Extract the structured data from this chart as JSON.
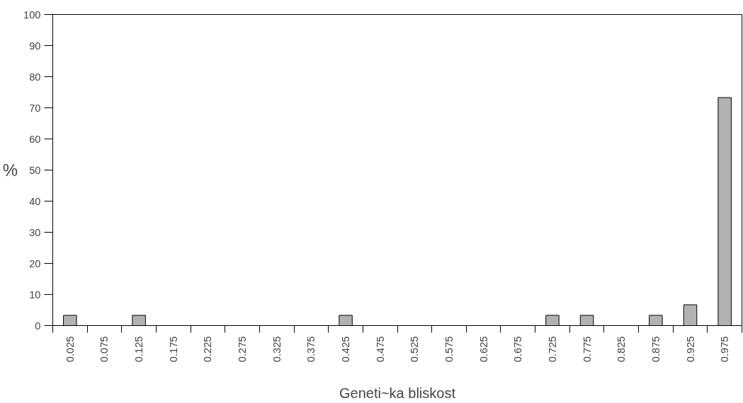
{
  "chart_data": {
    "type": "bar",
    "xlabel": "Geneti~ka bliskost",
    "ylabel": "%",
    "categories": [
      "0.025",
      "0.075",
      "0.125",
      "0.175",
      "0.225",
      "0.275",
      "0.325",
      "0.375",
      "0.425",
      "0.475",
      "0.525",
      "0.575",
      "0.625",
      "0.675",
      "0.725",
      "0.775",
      "0.825",
      "0.875",
      "0.925",
      "0.975"
    ],
    "values": [
      3.3,
      0,
      3.3,
      0,
      0,
      0,
      0,
      0,
      3.3,
      0,
      0,
      0,
      0,
      0,
      3.3,
      3.3,
      0,
      3.3,
      6.7,
      73.3
    ],
    "color": "#b2b2b2",
    "ylim": [
      0,
      100
    ],
    "yticks": [
      0,
      10,
      20,
      30,
      40,
      50,
      60,
      70,
      80,
      90,
      100
    ]
  }
}
